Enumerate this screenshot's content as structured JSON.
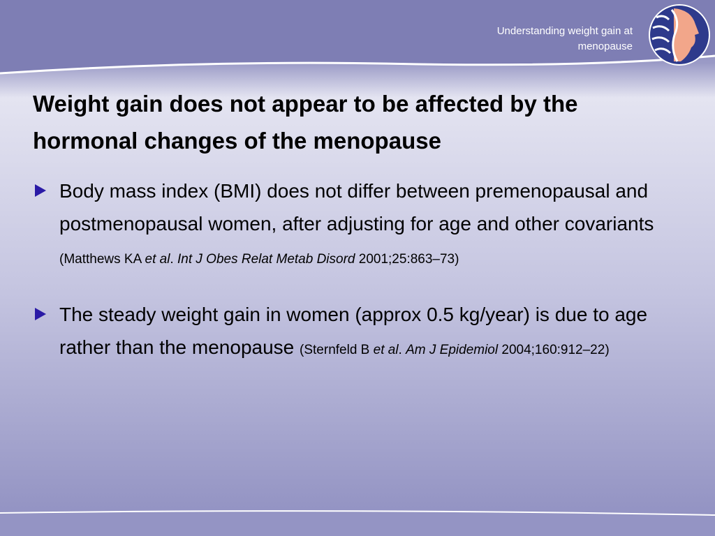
{
  "header": {
    "text": "Understanding weight gain at menopause"
  },
  "title": "Weight gain does not appear to be affected by the hormonal changes of the menopause",
  "bullets": [
    {
      "text": "Body mass index (BMI) does not differ between premenopausal and postmenopausal women, after adjusting for age and other covariants",
      "citation": [
        {
          "text": "(Matthews KA ",
          "italic": false
        },
        {
          "text": "et al",
          "italic": true
        },
        {
          "text": ". ",
          "italic": false
        },
        {
          "text": "Int J Obes Relat Metab Disord",
          "italic": true
        },
        {
          "text": " 2001;25:863–73)",
          "italic": false
        }
      ]
    },
    {
      "text": "The steady weight gain in women (approx 0.5 kg/year) is due to age rather than the menopause",
      "citation": [
        {
          "text": "(Sternfeld B ",
          "italic": false
        },
        {
          "text": "et al",
          "italic": true
        },
        {
          "text": ". ",
          "italic": false
        },
        {
          "text": "Am J Epidemiol",
          "italic": true
        },
        {
          "text": " 2004;160:912–22)",
          "italic": false
        }
      ]
    }
  ]
}
